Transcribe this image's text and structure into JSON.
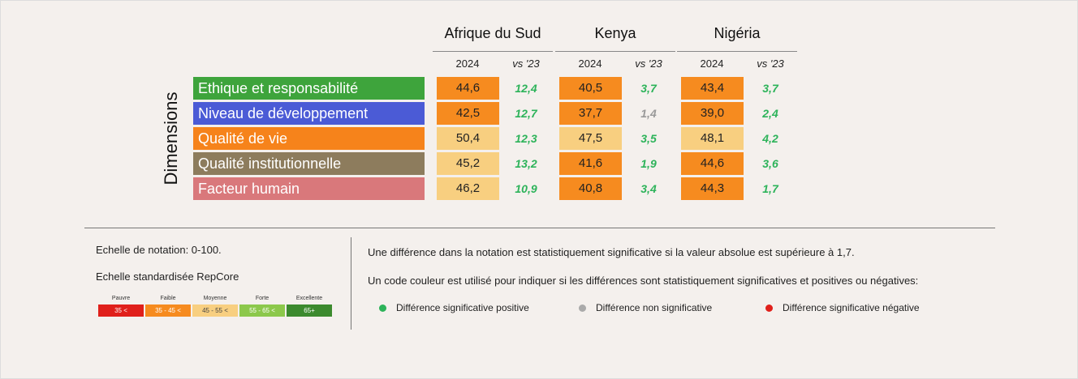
{
  "table": {
    "axis_label": "Dimensions",
    "countries": [
      "Afrique du Sud",
      "Kenya",
      "Nigéria"
    ],
    "subheaders": [
      "2024",
      "vs '23"
    ],
    "rows": [
      {
        "label": "Ethique et responsabilité",
        "color": "#3ea43c",
        "cells": [
          {
            "score": "44,6",
            "score_color": "#f68b1f",
            "diff": "12,4",
            "diff_color": "#2db35a"
          },
          {
            "score": "40,5",
            "score_color": "#f68b1f",
            "diff": "3,7",
            "diff_color": "#2db35a"
          },
          {
            "score": "43,4",
            "score_color": "#f68b1f",
            "diff": "3,7",
            "diff_color": "#2db35a"
          }
        ]
      },
      {
        "label": "Niveau de développement",
        "color": "#4b5bd6",
        "cells": [
          {
            "score": "42,5",
            "score_color": "#f68b1f",
            "diff": "12,7",
            "diff_color": "#2db35a"
          },
          {
            "score": "37,7",
            "score_color": "#f68b1f",
            "diff": "1,4",
            "diff_color": "#999999"
          },
          {
            "score": "39,0",
            "score_color": "#f68b1f",
            "diff": "2,4",
            "diff_color": "#2db35a"
          }
        ]
      },
      {
        "label": "Qualité de vie",
        "color": "#f6831b",
        "cells": [
          {
            "score": "50,4",
            "score_color": "#f8cf80",
            "diff": "12,3",
            "diff_color": "#2db35a"
          },
          {
            "score": "47,5",
            "score_color": "#f8cf80",
            "diff": "3,5",
            "diff_color": "#2db35a"
          },
          {
            "score": "48,1",
            "score_color": "#f8cf80",
            "diff": "4,2",
            "diff_color": "#2db35a"
          }
        ]
      },
      {
        "label": "Qualité institutionnelle",
        "color": "#8d7c5d",
        "cells": [
          {
            "score": "45,2",
            "score_color": "#f8cf80",
            "diff": "13,2",
            "diff_color": "#2db35a"
          },
          {
            "score": "41,6",
            "score_color": "#f68b1f",
            "diff": "1,9",
            "diff_color": "#2db35a"
          },
          {
            "score": "44,6",
            "score_color": "#f68b1f",
            "diff": "3,6",
            "diff_color": "#2db35a"
          }
        ]
      },
      {
        "label": "Facteur humain",
        "color": "#d9787b",
        "cells": [
          {
            "score": "46,2",
            "score_color": "#f8cf80",
            "diff": "10,9",
            "diff_color": "#2db35a"
          },
          {
            "score": "40,8",
            "score_color": "#f68b1f",
            "diff": "3,4",
            "diff_color": "#2db35a"
          },
          {
            "score": "44,3",
            "score_color": "#f68b1f",
            "diff": "1,7",
            "diff_color": "#2db35a"
          }
        ]
      }
    ]
  },
  "notes": {
    "scale": "Echelle de notation: 0-100.",
    "standard": "Echelle standardisée RepCore",
    "significance": "Une différence dans la notation est statistiquement significative si la valeur absolue est supérieure à 1,7.",
    "color_code": "Un code couleur est utilisé pour indiquer si les différences sont statistiquement significatives et positives ou négatives:"
  },
  "scale_legend": [
    {
      "name": "Pauvre",
      "range": "35 <",
      "color": "#e0201b"
    },
    {
      "name": "Faible",
      "range": "35 - 45 <",
      "color": "#f68b1f"
    },
    {
      "name": "Moyenne",
      "range": "45 - 55 <",
      "color": "#f8cf80"
    },
    {
      "name": "Forte",
      "range": "55 - 65 <",
      "color": "#8cc84b"
    },
    {
      "name": "Excellente",
      "range": "65+",
      "color": "#3c8a2e"
    }
  ],
  "significance_legend": [
    {
      "label": "Différence significative positive",
      "color": "#2db35a"
    },
    {
      "label": "Différence non significative",
      "color": "#aaaaaa"
    },
    {
      "label": "Différence significative négative",
      "color": "#e0201b"
    }
  ]
}
